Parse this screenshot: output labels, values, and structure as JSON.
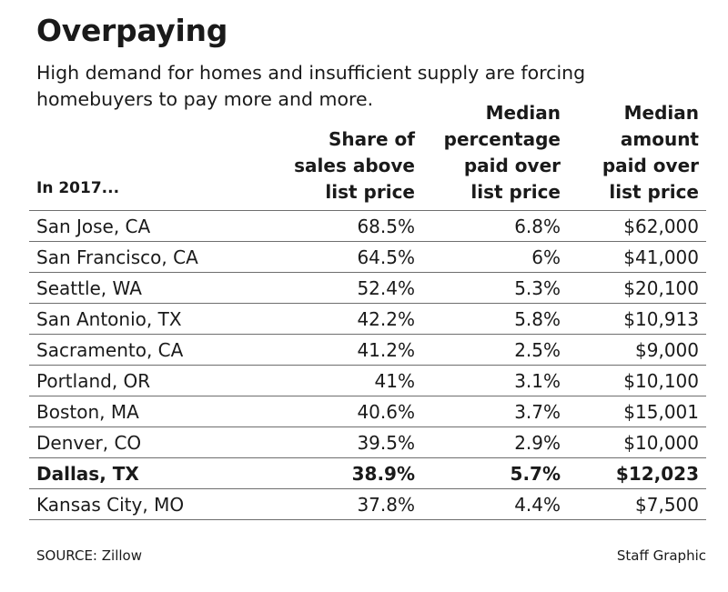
{
  "title": "Overpaying",
  "subtitle": "High demand for homes and insufficient supply are forcing homebuyers to pay more and more.",
  "source": "SOURCE: Zillow",
  "credit": "Staff Graphic",
  "colors": {
    "text": "#1a1a1a",
    "rule": "#6e6e6e",
    "background": "#ffffff"
  },
  "chart_data": {
    "type": "table",
    "title": "Overpaying",
    "subtitle": "High demand for homes and insufficient supply are forcing homebuyers to pay more and more.",
    "columns": [
      "In 2017...",
      "Share of sales above list price",
      "Median percentage paid over list price",
      "Median amount paid over list price"
    ],
    "rows": [
      {
        "city": "San Jose, CA",
        "share": "68.5%",
        "pct": "6.8%",
        "amount": "$62,000"
      },
      {
        "city": "San Francisco, CA",
        "share": "64.5%",
        "pct": "6%",
        "amount": "$41,000"
      },
      {
        "city": "Seattle, WA",
        "share": "52.4%",
        "pct": "5.3%",
        "amount": "$20,100"
      },
      {
        "city": "San Antonio, TX",
        "share": "42.2%",
        "pct": "5.8%",
        "amount": "$10,913"
      },
      {
        "city": "Sacramento, CA",
        "share": "41.2%",
        "pct": "2.5%",
        "amount": "$9,000"
      },
      {
        "city": "Portland, OR",
        "share": "41%",
        "pct": "3.1%",
        "amount": "$10,100"
      },
      {
        "city": "Boston, MA",
        "share": "40.6%",
        "pct": "3.7%",
        "amount": "$15,001"
      },
      {
        "city": "Denver, CO",
        "share": "39.5%",
        "pct": "2.9%",
        "amount": "$10,000"
      },
      {
        "city": "Dallas, TX",
        "share": "38.9%",
        "pct": "5.7%",
        "amount": "$12,023",
        "highlight": true
      },
      {
        "city": "Kansas City, MO",
        "share": "37.8%",
        "pct": "4.4%",
        "amount": "$7,500"
      }
    ]
  }
}
